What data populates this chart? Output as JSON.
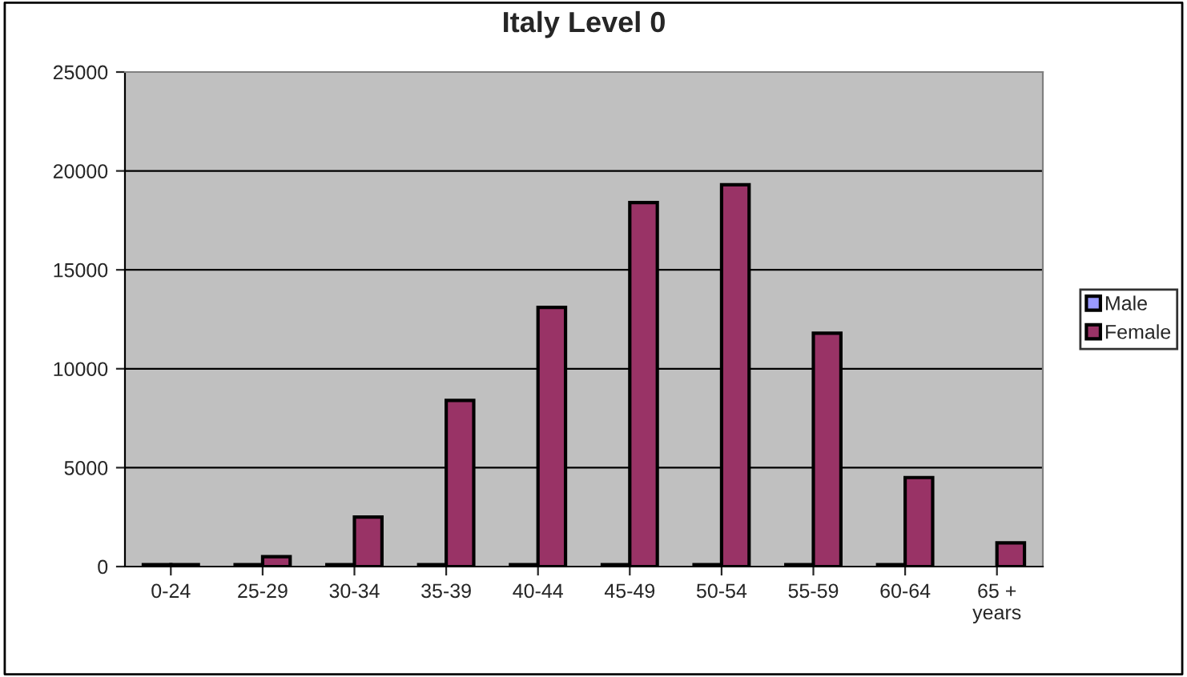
{
  "chart_data": {
    "type": "bar",
    "title": "Italy Level 0",
    "categories": [
      "0-24",
      "25-29",
      "30-34",
      "35-39",
      "40-44",
      "45-49",
      "50-54",
      "55-59",
      "60-64",
      "65 +\nyears"
    ],
    "series": [
      {
        "name": "Male",
        "color": "#9999ff",
        "values": [
          100,
          100,
          100,
          100,
          100,
          100,
          100,
          100,
          100,
          null
        ]
      },
      {
        "name": "Female",
        "color": "#993366",
        "values": [
          100,
          500,
          2500,
          8400,
          13100,
          18400,
          19300,
          11800,
          4500,
          1200
        ]
      }
    ],
    "ylim": [
      0,
      25000
    ],
    "yticks": [
      0,
      5000,
      10000,
      15000,
      20000,
      25000
    ],
    "grid": "y",
    "legend": "right"
  }
}
